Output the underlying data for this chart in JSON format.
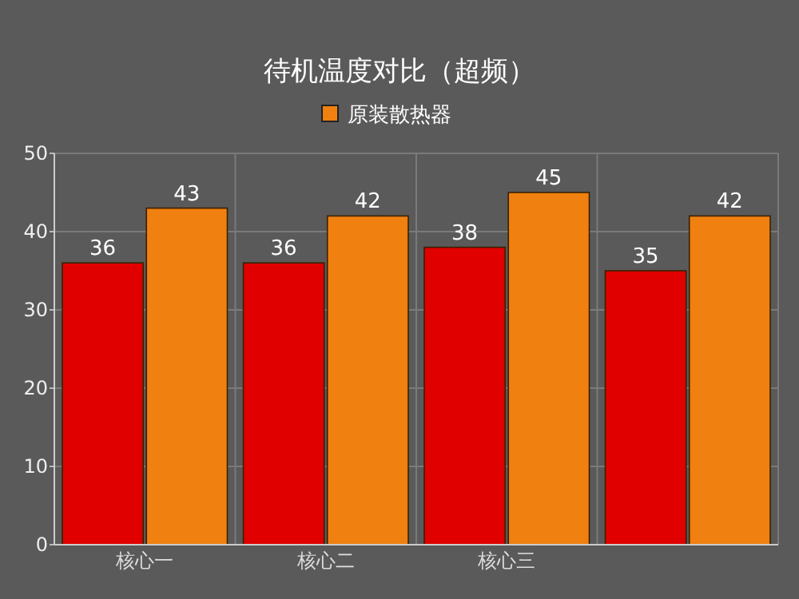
{
  "chart_data": {
    "type": "bar",
    "title": "待机温度对比（超频）",
    "categories": [
      "核心一",
      "核心二",
      "核心三",
      null
    ],
    "series": [
      {
        "color": "#e00000",
        "values": [
          36,
          36,
          38,
          35
        ]
      },
      {
        "name": "原装散热器",
        "color": "#f08010",
        "values": [
          43,
          42,
          45,
          42
        ]
      }
    ],
    "ylim": [
      0,
      50
    ],
    "yticks": [
      0,
      10,
      20,
      30,
      40,
      50
    ],
    "grid": true,
    "legend": "top",
    "data_labels": true
  }
}
